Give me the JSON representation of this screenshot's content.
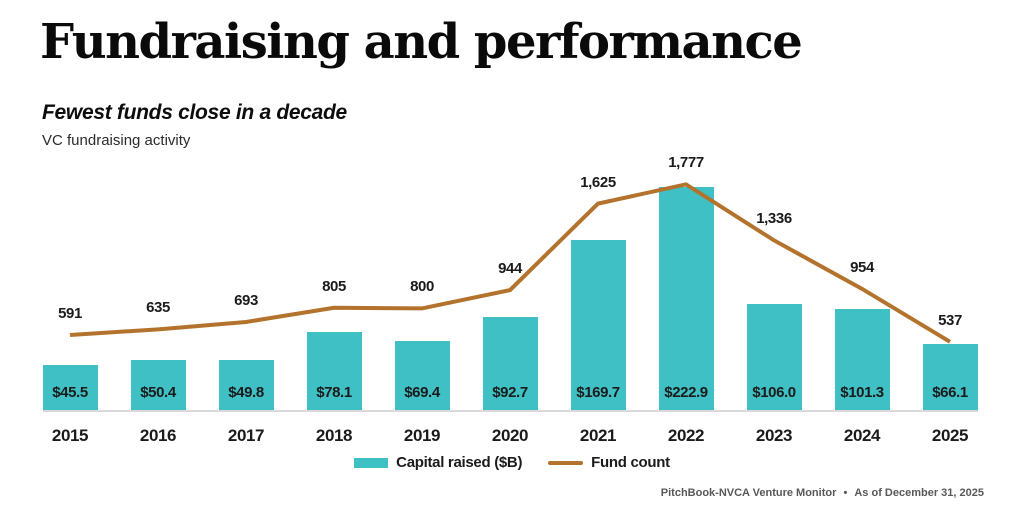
{
  "header": {
    "title": "Fundraising and performance",
    "subtitle": "Fewest funds close in a decade",
    "caption": "VC fundraising activity"
  },
  "chart_data": {
    "type": "combo",
    "title": "VC fundraising activity",
    "categories": [
      "2015",
      "2016",
      "2017",
      "2018",
      "2019",
      "2020",
      "2021",
      "2022",
      "2023",
      "2024",
      "2025"
    ],
    "series": [
      {
        "name": "Capital raised ($B)",
        "chart_type": "bar",
        "color": "#3EC0C5",
        "values": [
          45.5,
          50.4,
          49.8,
          78.1,
          69.4,
          92.7,
          169.7,
          222.9,
          106.0,
          101.3,
          66.1
        ],
        "value_labels": [
          "$45.5",
          "$50.4",
          "$49.8",
          "$78.1",
          "$69.4",
          "$92.7",
          "$169.7",
          "$222.9",
          "$106.0",
          "$101.3",
          "$66.1"
        ]
      },
      {
        "name": "Fund count",
        "chart_type": "line",
        "color": "#B3732D",
        "values": [
          591,
          635,
          693,
          805,
          800,
          944,
          1625,
          1777,
          1336,
          954,
          537
        ],
        "value_labels": [
          "591",
          "635",
          "693",
          "805",
          "800",
          "944",
          "1,625",
          "1,777",
          "1,336",
          "954",
          "537"
        ]
      }
    ],
    "xlabel": "",
    "ylabel": "",
    "y_axis_visible": false,
    "grid": false,
    "legend_position": "bottom-center",
    "baseline_color": "#D9D9D9"
  },
  "footer": {
    "source": "PitchBook-NVCA Venture Monitor",
    "separator": "•",
    "as_of": "As of December 31, 2025"
  }
}
